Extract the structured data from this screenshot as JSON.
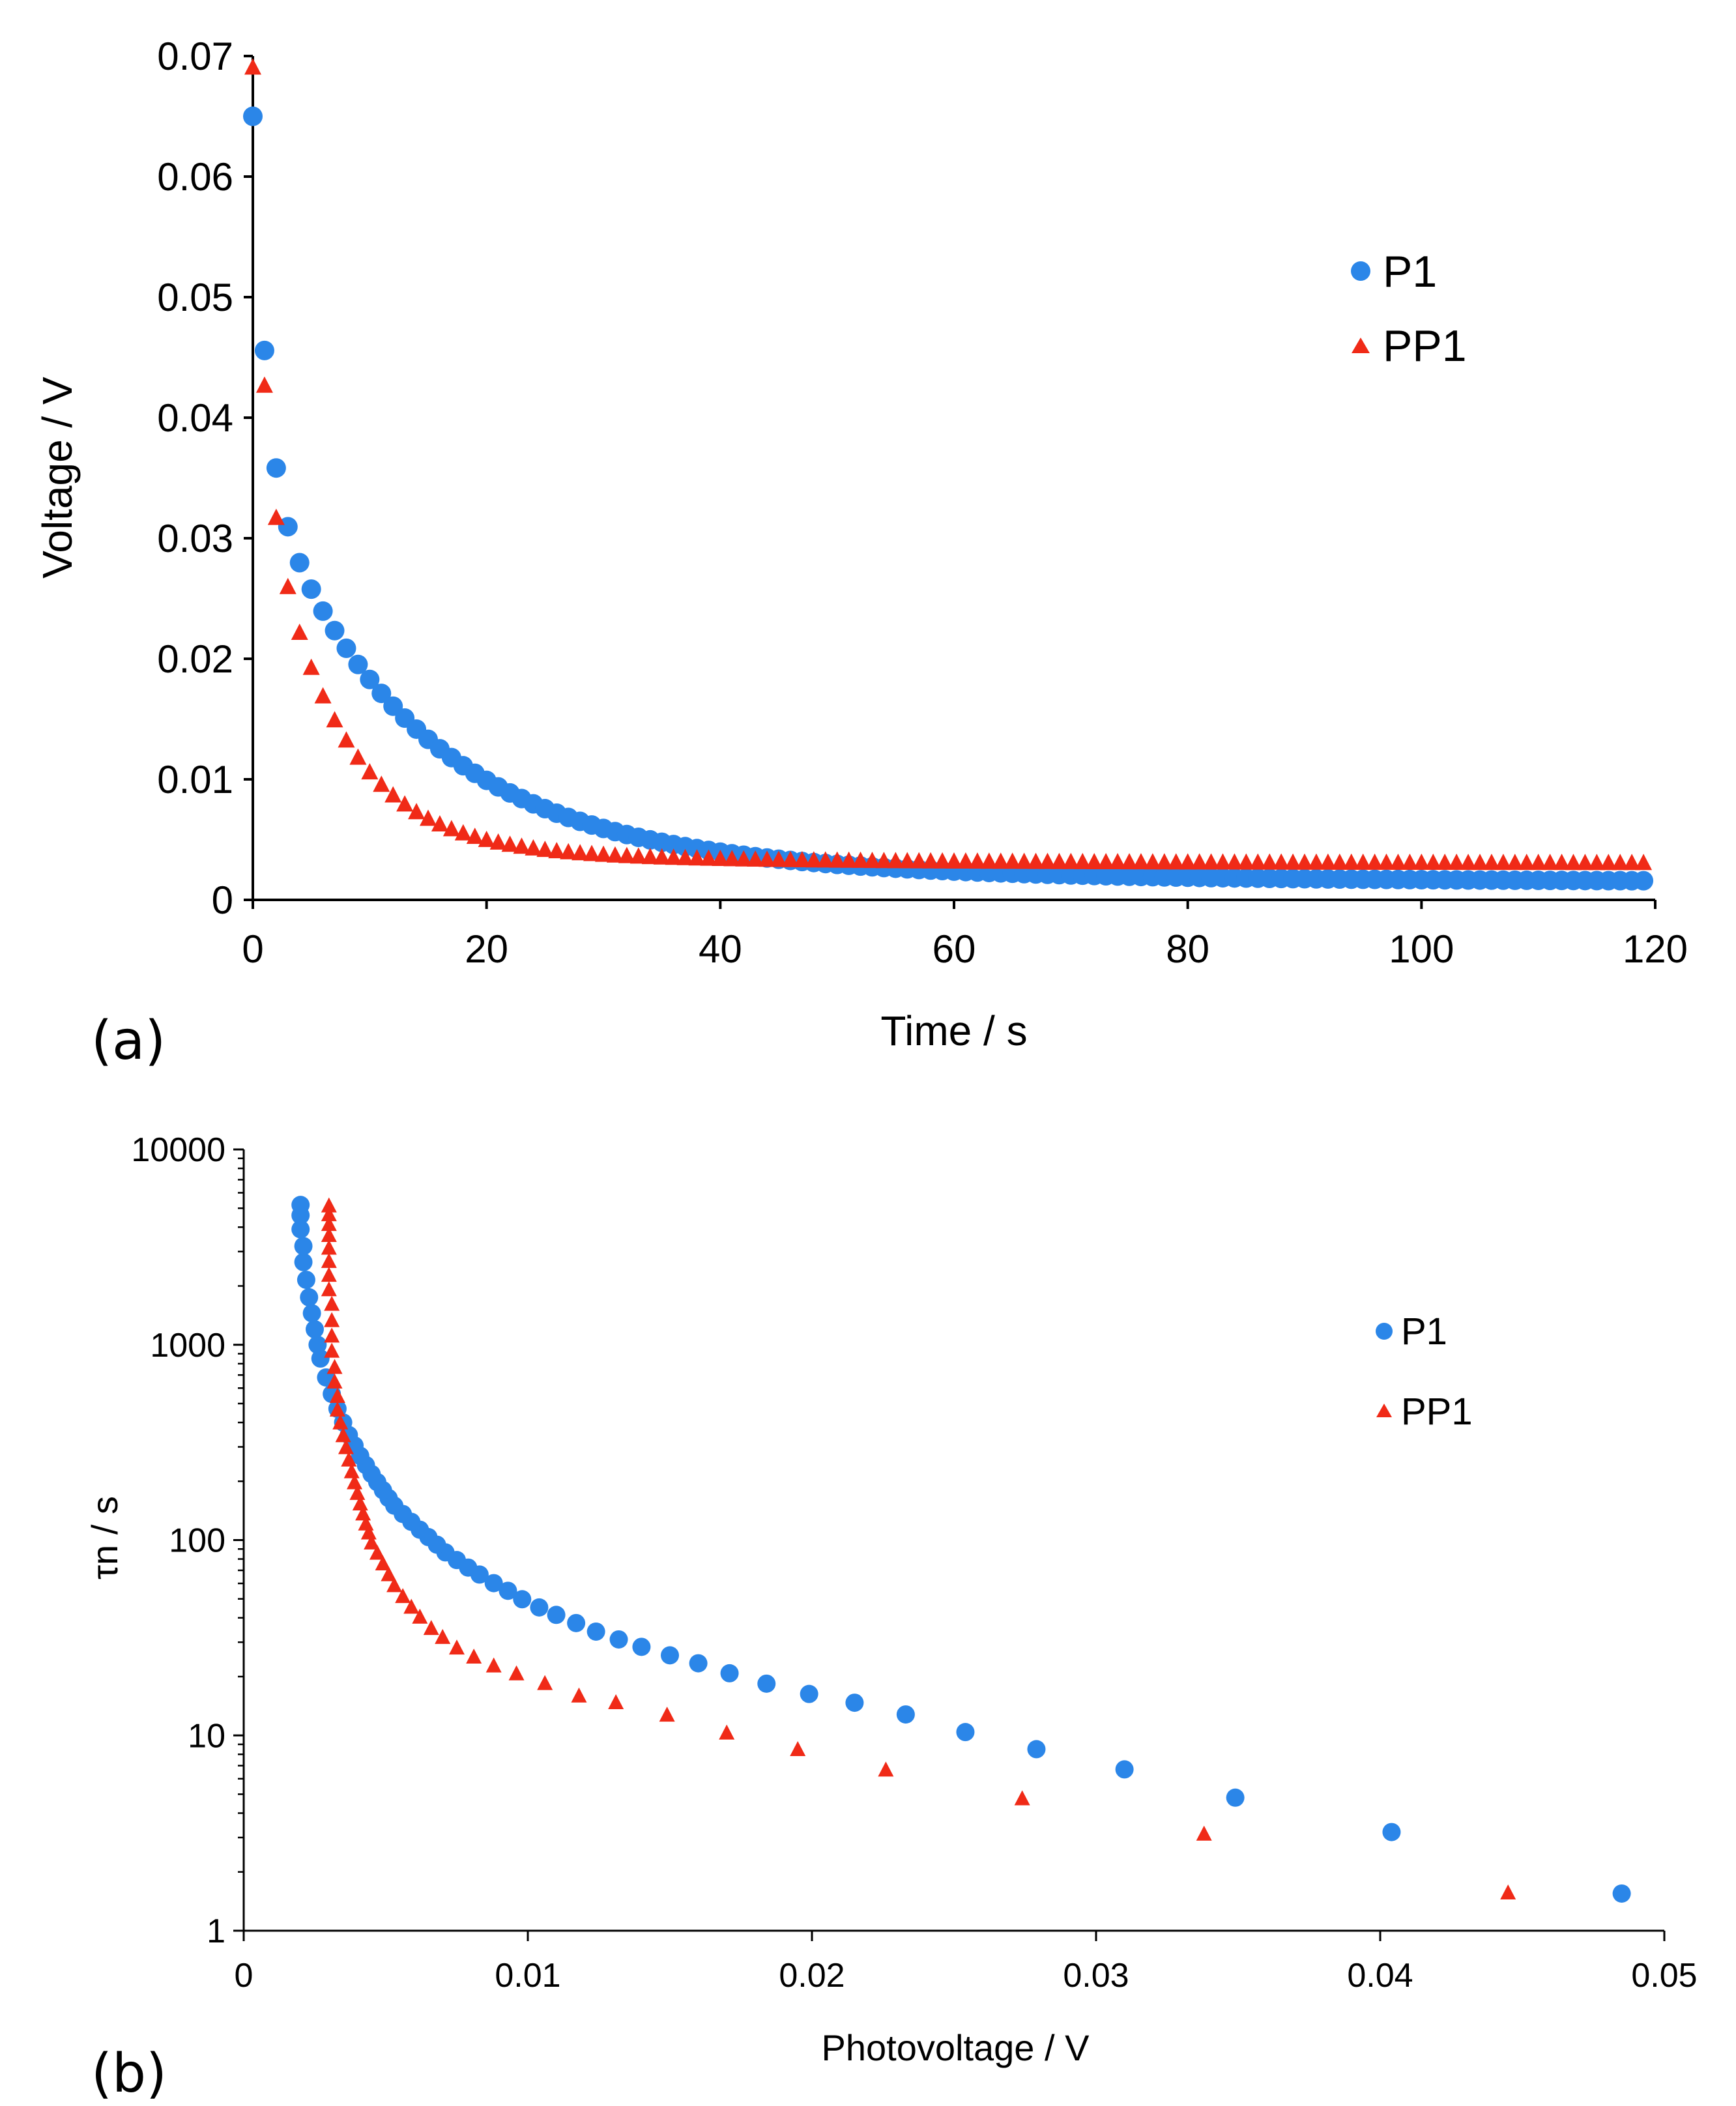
{
  "chart_data": [
    {
      "panel_label": "(a)",
      "type": "scatter",
      "xlabel": "Time / s",
      "ylabel": "Voltage / V",
      "xlim": [
        0,
        120
      ],
      "ylim": [
        0,
        0.07
      ],
      "x_ticks": [
        "0",
        "20",
        "40",
        "60",
        "80",
        "100",
        "120"
      ],
      "y_ticks": [
        "0",
        "0.01",
        "0.02",
        "0.03",
        "0.04",
        "0.05",
        "0.06",
        "0.07"
      ],
      "legend_position": "top-right",
      "series": [
        {
          "name": "P1",
          "marker": "circle",
          "color": "#2b86e8",
          "model": {
            "t_start": 0,
            "t_end": 119,
            "t_step": 1,
            "v0": 0.065,
            "a1": 0.032,
            "k1": 1.0,
            "a2": 0.0293,
            "k2": 0.082,
            "a3": 0.0055,
            "k3": 0.035,
            "c": 0.0015
          }
        },
        {
          "name": "PP1",
          "marker": "triangle",
          "color": "#f02a17",
          "model": {
            "t_start": 0,
            "t_end": 119,
            "t_step": 1,
            "v0": 0.069,
            "a1": 0.031,
            "k1": 1.2,
            "a2": 0.034,
            "k2": 0.165,
            "a3": 0.0015,
            "k3": 0.04,
            "c": 0.003
          }
        }
      ]
    },
    {
      "panel_label": "(b)",
      "type": "scatter",
      "xlabel": "Photovoltage / V",
      "ylabel": "τn / s",
      "yscale": "log",
      "xlim": [
        0,
        0.05
      ],
      "ylim": [
        1,
        10000
      ],
      "x_ticks": [
        "0",
        "0.01",
        "0.02",
        "0.03",
        "0.04",
        "0.05"
      ],
      "y_ticks": [
        "1",
        "10",
        "100",
        "1000",
        "10000"
      ],
      "legend_position": "top-right",
      "series": [
        {
          "name": "P1",
          "marker": "circle",
          "color": "#2b86e8",
          "x": [
            0.0485,
            0.0404,
            0.0349,
            0.031,
            0.0279,
            0.0254,
            0.0233,
            0.0215,
            0.0199,
            0.0184,
            0.0171,
            0.016,
            0.015,
            0.014,
            0.0132,
            0.0124,
            0.0117,
            0.011,
            0.0104,
            0.0098,
            0.0093,
            0.0088,
            0.0083,
            0.0079,
            0.0075,
            0.0071,
            0.0068,
            0.0065,
            0.0062,
            0.0059,
            0.0056,
            0.0053,
            0.0051,
            0.0049,
            0.0047,
            0.0045,
            0.0043,
            0.0041,
            0.0039,
            0.0037,
            0.0035,
            0.0033,
            0.0031,
            0.0029,
            0.0027,
            0.0026,
            0.0025,
            0.0024,
            0.0023,
            0.0022,
            0.0021,
            0.0021,
            0.002,
            0.002,
            0.002
          ],
          "y": [
            1.55,
            3.2,
            4.8,
            6.7,
            8.5,
            10.4,
            12.8,
            14.7,
            16.3,
            18.4,
            20.8,
            23.4,
            25.7,
            28.4,
            31.0,
            34.0,
            37.6,
            41.4,
            45.2,
            49.8,
            55.0,
            60.2,
            66.6,
            72.3,
            79.0,
            86.5,
            94.7,
            103.6,
            113.0,
            124.0,
            136.0,
            150.0,
            164.0,
            180.0,
            198.0,
            218.0,
            242.0,
            270.0,
            305.0,
            345.0,
            400.0,
            470.0,
            560.0,
            680.0,
            850.0,
            1000.0,
            1200.0,
            1450.0,
            1750.0,
            2150.0,
            2650.0,
            3200.0,
            3900.0,
            4600.0,
            5200.0
          ]
        },
        {
          "name": "PP1",
          "marker": "triangle",
          "color": "#f02a17",
          "x": [
            0.0445,
            0.0338,
            0.0274,
            0.0226,
            0.0195,
            0.017,
            0.0149,
            0.0131,
            0.0118,
            0.0106,
            0.0096,
            0.0088,
            0.0081,
            0.0075,
            0.007,
            0.0066,
            0.0062,
            0.0059,
            0.0056,
            0.0053,
            0.0051,
            0.0049,
            0.0047,
            0.0045,
            0.0044,
            0.0043,
            0.0042,
            0.0041,
            0.004,
            0.0039,
            0.0038,
            0.0037,
            0.0036,
            0.0035,
            0.0034,
            0.0033,
            0.0033,
            0.0032,
            0.0032,
            0.0031,
            0.0031,
            0.0031,
            0.0031,
            0.003,
            0.003,
            0.003,
            0.003,
            0.003,
            0.003,
            0.003,
            0.003
          ],
          "y": [
            1.55,
            3.1,
            4.7,
            6.6,
            8.4,
            10.2,
            12.6,
            14.6,
            15.8,
            18.3,
            20.5,
            22.5,
            25.0,
            27.8,
            31.5,
            35.0,
            40.0,
            45.0,
            51.0,
            58.0,
            66.0,
            75.0,
            85.0,
            96.0,
            108.0,
            120.0,
            135.0,
            152.0,
            172.0,
            195.0,
            222.0,
            255.0,
            295.0,
            340.0,
            395.0,
            460.0,
            540.0,
            640.0,
            760.0,
            920.0,
            1100.0,
            1320.0,
            1600.0,
            1900.0,
            2250.0,
            2650.0,
            3100.0,
            3600.0,
            4100.0,
            4600.0,
            5100.0
          ]
        }
      ]
    }
  ]
}
